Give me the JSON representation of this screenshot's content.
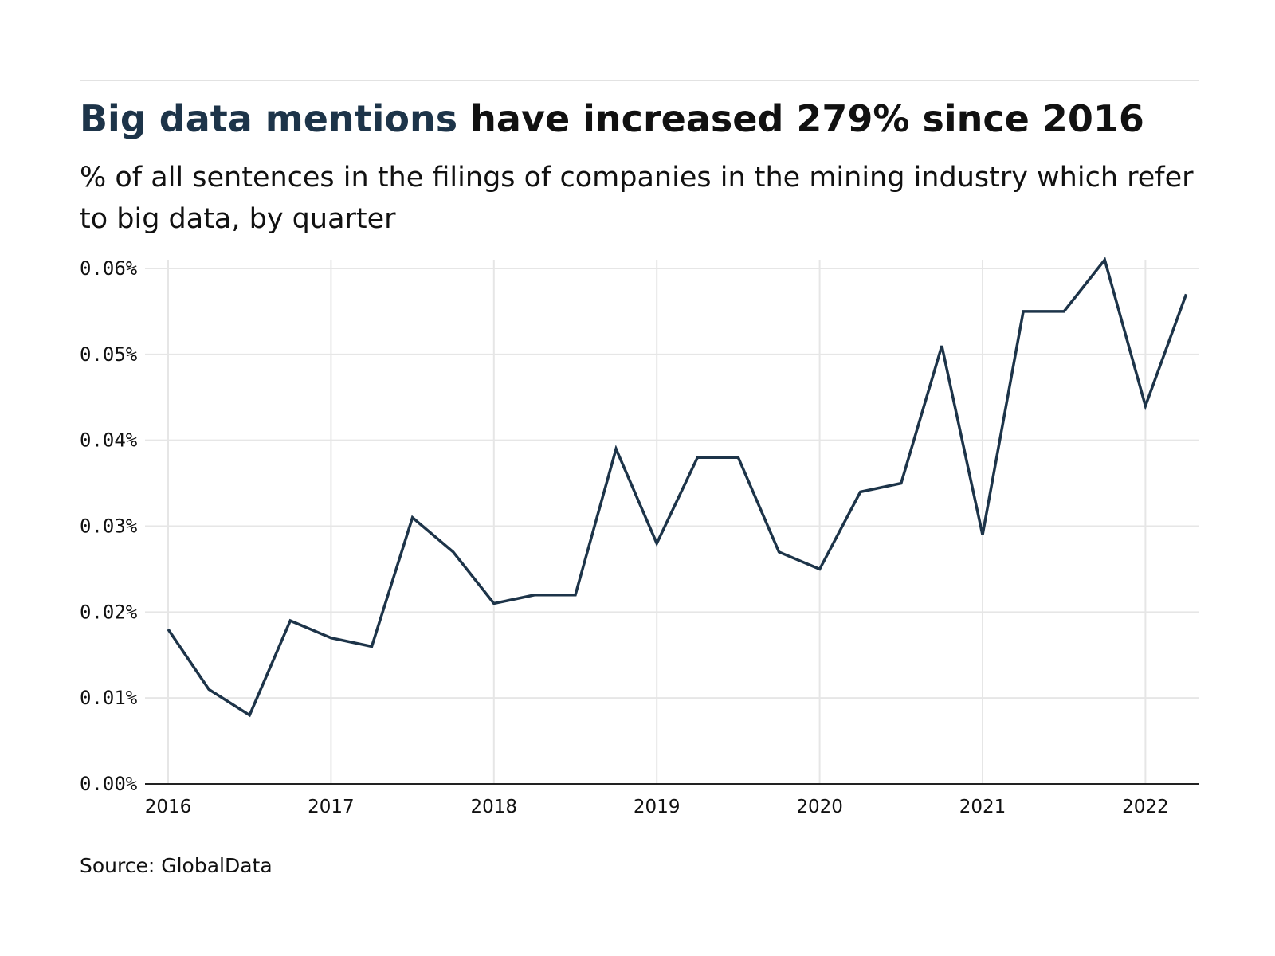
{
  "header": {
    "title_highlight": "Big data mentions",
    "title_rest": " have increased 279% since 2016",
    "subtitle": "% of all sentences in the filings of companies in the mining industry which refer to big data, by quarter"
  },
  "footer": {
    "source": "Source: GlobalData"
  },
  "colors": {
    "line": "#1d3449",
    "title_highlight": "#1d3449",
    "grid": "#e6e6e6"
  },
  "chart_data": {
    "type": "line",
    "title": "Big data mentions have increased 279% since 2016",
    "xlabel": "",
    "ylabel": "",
    "x": [
      "2016 Q1",
      "2016 Q2",
      "2016 Q3",
      "2016 Q4",
      "2017 Q1",
      "2017 Q2",
      "2017 Q3",
      "2017 Q4",
      "2018 Q1",
      "2018 Q2",
      "2018 Q3",
      "2018 Q4",
      "2019 Q1",
      "2019 Q2",
      "2019 Q3",
      "2019 Q4",
      "2020 Q1",
      "2020 Q2",
      "2020 Q3",
      "2020 Q4",
      "2021 Q1",
      "2021 Q2",
      "2021 Q3",
      "2021 Q4",
      "2022 Q1",
      "2022 Q2"
    ],
    "series": [
      {
        "values": [
          0.018,
          0.011,
          0.008,
          0.019,
          0.017,
          0.016,
          0.031,
          0.027,
          0.021,
          0.022,
          0.022,
          0.039,
          0.028,
          0.038,
          0.038,
          0.027,
          0.025,
          0.034,
          0.035,
          0.051,
          0.029,
          0.055,
          0.055,
          0.061,
          0.044,
          0.057
        ]
      }
    ],
    "x_tick_labels": [
      "2016",
      "2017",
      "2018",
      "2019",
      "2020",
      "2021",
      "2022"
    ],
    "y_ticks": [
      0,
      0.01,
      0.02,
      0.03,
      0.04,
      0.05,
      0.06
    ],
    "y_tick_labels": [
      "0.00%",
      "0.01%",
      "0.02%",
      "0.03%",
      "0.04%",
      "0.05%",
      "0.06%"
    ],
    "ylim": [
      0,
      0.06
    ],
    "grid": true,
    "legend": false
  }
}
